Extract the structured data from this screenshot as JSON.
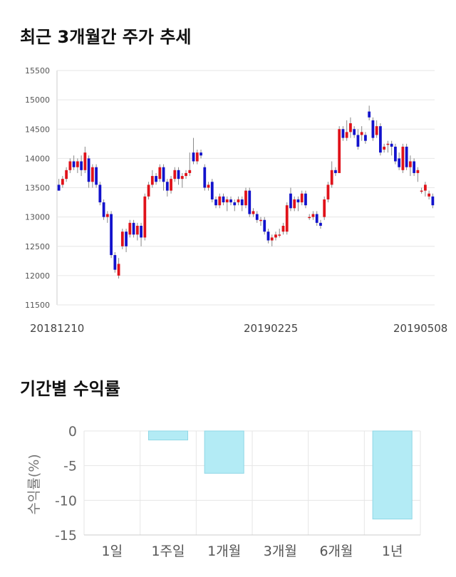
{
  "titles": {
    "price": "최근 3개월간 주가 추세",
    "returns": "기간별 수익률"
  },
  "colors": {
    "up": "#e0121a",
    "down": "#1212cc",
    "wick": "#888888",
    "bar_fill": "#b3ebf5",
    "bar_stroke": "#8fd7e6",
    "grid": "#e6e6e6"
  },
  "chart_data": [
    {
      "type": "candlestick",
      "title": "최근 3개월간 주가 추세",
      "ylim": [
        11500,
        15500
      ],
      "y_ticks": [
        11500,
        12000,
        12500,
        13000,
        13500,
        14000,
        14500,
        15000,
        15500
      ],
      "x_labels": [
        "20181210",
        "20190225",
        "20190508"
      ],
      "grid": true,
      "candles": [
        [
          13550,
          13450,
          13650,
          13450
        ],
        [
          13550,
          13650,
          13700,
          13500
        ],
        [
          13650,
          13800,
          13850,
          13600
        ],
        [
          13800,
          13950,
          14000,
          13750
        ],
        [
          13950,
          13850,
          14050,
          13800
        ],
        [
          13850,
          13950,
          14000,
          13750
        ],
        [
          13950,
          13800,
          14050,
          13700
        ],
        [
          13800,
          14100,
          14200,
          13750
        ],
        [
          14000,
          13600,
          14050,
          13500
        ],
        [
          13600,
          13850,
          13900,
          13500
        ],
        [
          13850,
          13550,
          13900,
          13500
        ],
        [
          13550,
          13250,
          13600,
          13200
        ],
        [
          13250,
          13000,
          13300,
          12950
        ],
        [
          13000,
          13050,
          13100,
          12900
        ],
        [
          13050,
          12350,
          13100,
          12300
        ],
        [
          12350,
          12100,
          12400,
          12050
        ],
        [
          12000,
          12200,
          12300,
          11950
        ],
        [
          12500,
          12750,
          12800,
          12450
        ],
        [
          12750,
          12500,
          12800,
          12400
        ],
        [
          12700,
          12900,
          12950,
          12650
        ],
        [
          12900,
          12700,
          12950,
          12650
        ],
        [
          12700,
          12850,
          12900,
          12600
        ],
        [
          12850,
          12650,
          12900,
          12500
        ],
        [
          12650,
          13350,
          13400,
          12600
        ],
        [
          13350,
          13550,
          13600,
          13300
        ],
        [
          13550,
          13700,
          13800,
          13500
        ],
        [
          13700,
          13600,
          13750,
          13550
        ],
        [
          13650,
          13850,
          13900,
          13600
        ],
        [
          13850,
          13600,
          13900,
          13450
        ],
        [
          13600,
          13450,
          13650,
          13350
        ],
        [
          13450,
          13650,
          13700,
          13400
        ],
        [
          13650,
          13800,
          13850,
          13600
        ],
        [
          13800,
          13650,
          13850,
          13550
        ],
        [
          13650,
          13700,
          13750,
          13500
        ],
        [
          13700,
          13750,
          13800,
          13650
        ],
        [
          13750,
          13800,
          14100,
          13700
        ],
        [
          14100,
          13950,
          14350,
          13900
        ],
        [
          13950,
          14100,
          14150,
          13900
        ],
        [
          14100,
          14050,
          14150,
          14000
        ],
        [
          13850,
          13500,
          13900,
          13450
        ],
        [
          13500,
          13550,
          13600,
          13450
        ],
        [
          13600,
          13300,
          13650,
          13250
        ],
        [
          13300,
          13200,
          13350,
          13150
        ],
        [
          13200,
          13350,
          13400,
          13150
        ],
        [
          13350,
          13250,
          13400,
          13200
        ],
        [
          13250,
          13300,
          13350,
          13100
        ],
        [
          13300,
          13250,
          13350,
          13200
        ],
        [
          13250,
          13200,
          13300,
          13100
        ],
        [
          13250,
          13300,
          13350,
          13200
        ],
        [
          13300,
          13200,
          13350,
          13100
        ],
        [
          13200,
          13450,
          13500,
          13150
        ],
        [
          13450,
          13050,
          13500,
          13000
        ],
        [
          13050,
          13100,
          13150,
          13000
        ],
        [
          13050,
          12950,
          13100,
          12900
        ],
        [
          12950,
          12950,
          13000,
          12850
        ],
        [
          12950,
          12750,
          13000,
          12700
        ],
        [
          12750,
          12600,
          12800,
          12550
        ],
        [
          12600,
          12650,
          12700,
          12500
        ],
        [
          12650,
          12700,
          12750,
          12600
        ],
        [
          12700,
          12700,
          12800,
          12650
        ],
        [
          12750,
          12850,
          12900,
          12700
        ],
        [
          12750,
          13200,
          13250,
          12700
        ],
        [
          13400,
          13150,
          13500,
          13100
        ],
        [
          13150,
          13300,
          13350,
          13100
        ],
        [
          13300,
          13250,
          13350,
          13100
        ],
        [
          13250,
          13400,
          13450,
          13200
        ],
        [
          13400,
          13200,
          13450,
          13150
        ],
        [
          13000,
          13000,
          13050,
          12950
        ],
        [
          13000,
          13050,
          13100,
          12950
        ],
        [
          13050,
          12900,
          13100,
          12850
        ],
        [
          12900,
          12850,
          12950,
          12800
        ],
        [
          13000,
          13300,
          13350,
          12950
        ],
        [
          13300,
          13550,
          13600,
          13250
        ],
        [
          13550,
          13800,
          13950,
          13500
        ],
        [
          13800,
          13750,
          13850,
          13700
        ],
        [
          13750,
          14500,
          14550,
          13750
        ],
        [
          14500,
          14350,
          14550,
          14300
        ],
        [
          14350,
          14450,
          14650,
          14300
        ],
        [
          14450,
          14600,
          14700,
          14350
        ],
        [
          14500,
          14400,
          14550,
          14350
        ],
        [
          14400,
          14200,
          14500,
          14150
        ],
        [
          14400,
          14450,
          14550,
          14300
        ],
        [
          14400,
          14300,
          14450,
          14250
        ],
        [
          14800,
          14700,
          14900,
          14650
        ],
        [
          14650,
          14350,
          14700,
          14300
        ],
        [
          14400,
          14550,
          14650,
          14350
        ],
        [
          14550,
          14100,
          14600,
          14050
        ],
        [
          14150,
          14200,
          14250,
          14100
        ],
        [
          14250,
          14250,
          14300,
          14100
        ],
        [
          14250,
          14200,
          14300,
          14050
        ],
        [
          14200,
          13950,
          14250,
          13900
        ],
        [
          14000,
          13850,
          14100,
          13800
        ],
        [
          13800,
          14200,
          14250,
          13750
        ],
        [
          14200,
          13850,
          14250,
          13800
        ],
        [
          13850,
          13950,
          14050,
          13700
        ],
        [
          13950,
          13750,
          14000,
          13700
        ],
        [
          13750,
          13800,
          13850,
          13600
        ],
        [
          13450,
          13450,
          13500,
          13400
        ],
        [
          13450,
          13550,
          13600,
          13350
        ],
        [
          13350,
          13400,
          13450,
          13300
        ],
        [
          13350,
          13200,
          13400,
          13150
        ]
      ]
    },
    {
      "type": "bar",
      "title": "기간별 수익률",
      "ylabel": "수익률(%)",
      "categories": [
        "1일",
        "1주일",
        "1개월",
        "3개월",
        "6개월",
        "1년"
      ],
      "values": [
        0,
        -1.3,
        -6.1,
        0,
        0,
        -12.7
      ],
      "ylim": [
        -15,
        0
      ],
      "y_ticks": [
        0,
        -5,
        -10,
        -15
      ],
      "grid": true
    }
  ]
}
